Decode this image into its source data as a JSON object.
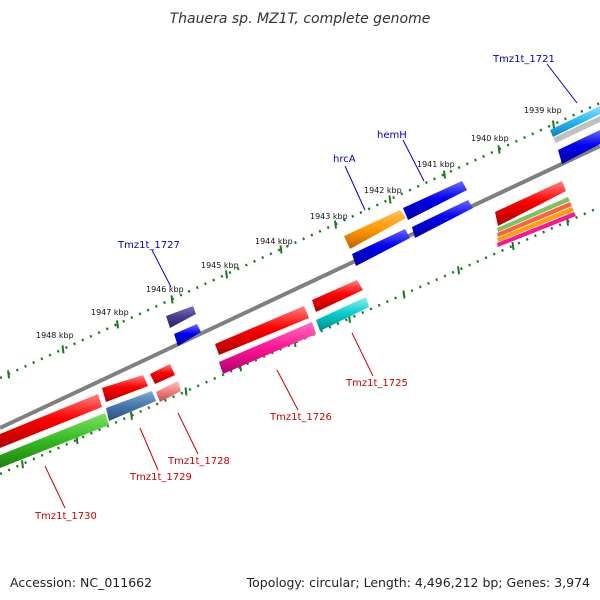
{
  "title": "Thauera sp. MZ1T, complete genome",
  "ruler": {
    "tick_labels": [
      "1939 kbp",
      "1940 kbp",
      "1941 kbp",
      "1942 kbp",
      "1943 kbp",
      "1944 kbp",
      "1945 kbp",
      "1946 kbp",
      "1947 kbp",
      "1948 kbp"
    ],
    "tick_color": "#1a7a1a",
    "backbone_color": "#808080"
  },
  "genes": [
    {
      "label": "Tmz1t_1721",
      "label_color": "#0000cc"
    },
    {
      "label": "hemH",
      "label_color": "#0000cc"
    },
    {
      "label": "hrcA",
      "label_color": "#0000cc"
    },
    {
      "label": "Tmz1t_1727",
      "label_color": "#0000cc"
    },
    {
      "label": "Tmz1t_1725",
      "label_color": "#cc0000"
    },
    {
      "label": "Tmz1t_1726",
      "label_color": "#cc0000"
    },
    {
      "label": "Tmz1t_1728",
      "label_color": "#cc0000"
    },
    {
      "label": "Tmz1t_1729",
      "label_color": "#cc0000"
    },
    {
      "label": "Tmz1t_1730",
      "label_color": "#cc0000"
    }
  ],
  "footer": {
    "accession": "Accession: NC_011662",
    "summary": "Topology: circular; Length: 4,496,212 bp; Genes: 3,974"
  }
}
